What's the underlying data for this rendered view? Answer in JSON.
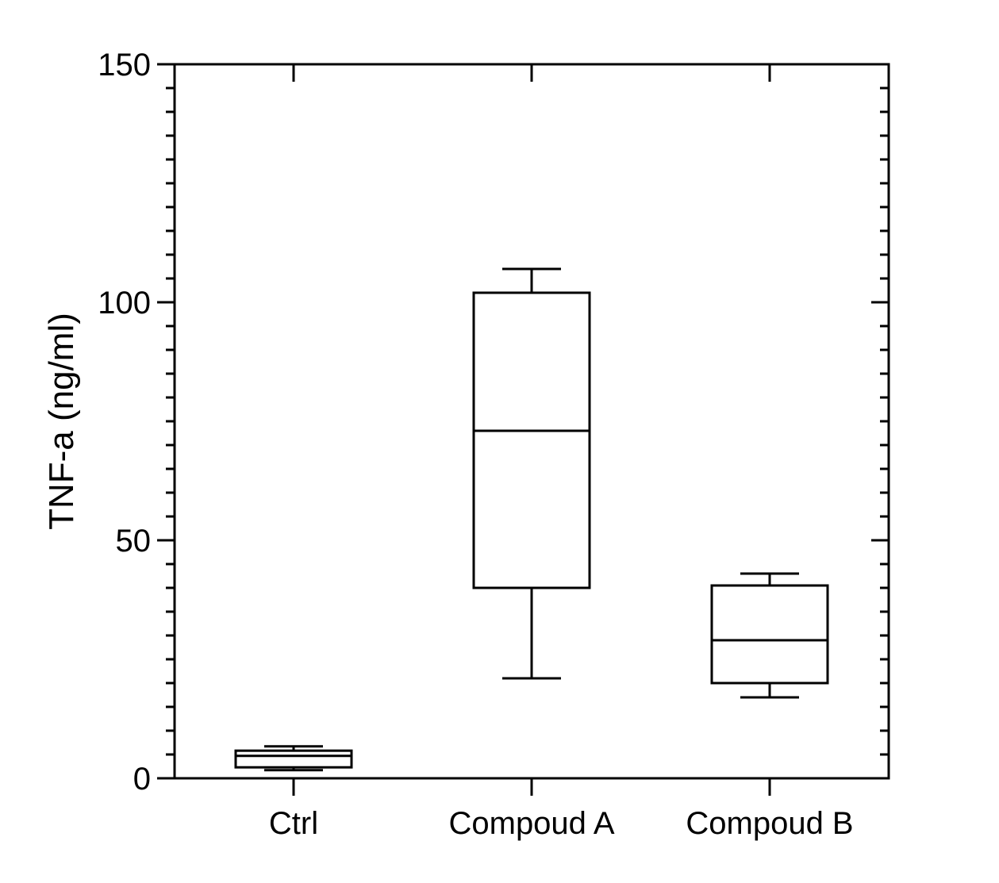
{
  "chart_data": {
    "type": "box",
    "ylabel": "TNF-a (ng/ml)",
    "ylim": [
      0,
      150
    ],
    "y_major_ticks": [
      0,
      50,
      100,
      150
    ],
    "y_minor_step": 5,
    "categories": [
      "Ctrl",
      "Compoud A",
      "Compoud B"
    ],
    "boxes": [
      {
        "category": "Ctrl",
        "min": 1.7,
        "q1": 2.3,
        "median": 4.7,
        "q3": 5.8,
        "max": 6.7
      },
      {
        "category": "Compoud A",
        "min": 21,
        "q1": 40,
        "median": 73,
        "q3": 102,
        "max": 107
      },
      {
        "category": "Compoud B",
        "min": 17,
        "q1": 20,
        "median": 29,
        "q3": 40.5,
        "max": 43
      }
    ],
    "grid": false,
    "legend": "none"
  }
}
